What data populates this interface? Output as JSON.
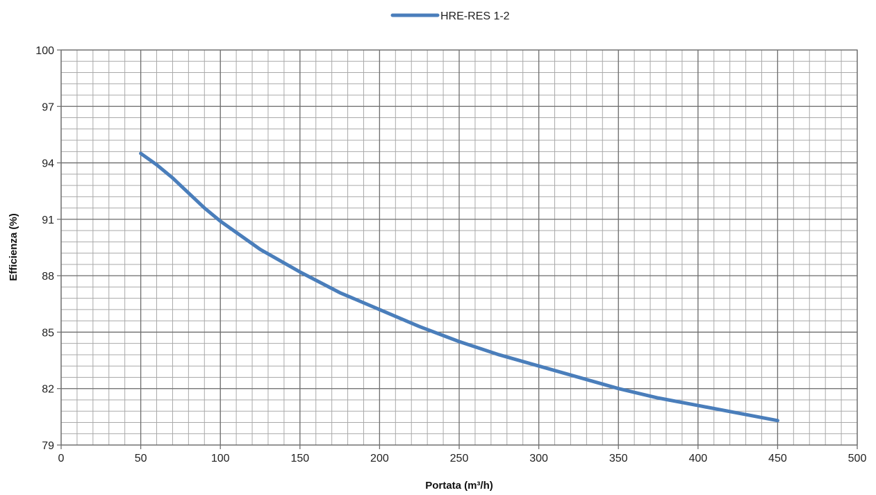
{
  "chart_data": {
    "type": "line",
    "xlabel": "Portata (m³/h)",
    "ylabel": "Efficienza (%)",
    "xlim": [
      0,
      500
    ],
    "ylim": [
      79,
      100
    ],
    "x_ticks": [
      0,
      50,
      100,
      150,
      200,
      250,
      300,
      350,
      400,
      450,
      500
    ],
    "y_ticks": [
      79,
      82,
      85,
      88,
      91,
      94,
      97,
      100
    ],
    "x_minor_step": 10,
    "y_minor_step": 0.6,
    "grid": true,
    "legend_position": "top-center",
    "series": [
      {
        "name": "HRE-RES 1-2",
        "color": "#4a7ebb",
        "x": [
          50,
          60,
          70,
          80,
          90,
          100,
          125,
          150,
          175,
          200,
          225,
          250,
          275,
          300,
          325,
          350,
          375,
          400,
          425,
          450
        ],
        "y": [
          94.5,
          93.9,
          93.2,
          92.4,
          91.6,
          90.9,
          89.4,
          88.2,
          87.1,
          86.2,
          85.3,
          84.5,
          83.8,
          83.2,
          82.6,
          82.0,
          81.5,
          81.1,
          80.7,
          80.3
        ]
      }
    ]
  }
}
